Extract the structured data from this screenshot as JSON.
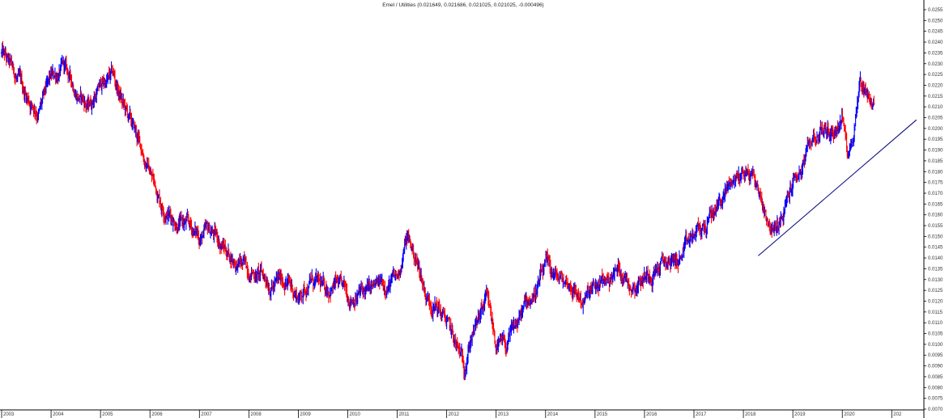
{
  "chart_data": {
    "type": "ohlc",
    "title": "Emel / Utilities (0.021649, 0.021686, 0.021025, 0.021025, -0.000496)",
    "x_tick_labels": [
      "2003",
      "2004",
      "2005",
      "2006",
      "2007",
      "2008",
      "2009",
      "2010",
      "2011",
      "2012",
      "2013",
      "2014",
      "2015",
      "2016",
      "2017",
      "2018",
      "2019",
      "2020",
      "202"
    ],
    "y_tick_labels": [
      "0.0255",
      "0.0250",
      "0.0245",
      "0.0240",
      "0.0235",
      "0.0230",
      "0.0225",
      "0.0220",
      "0.0215",
      "0.0210",
      "0.0205",
      "0.0200",
      "0.0195",
      "0.0190",
      "0.0185",
      "0.0180",
      "0.0175",
      "0.0170",
      "0.0165",
      "0.0160",
      "0.0155",
      "0.0150",
      "0.0145",
      "0.0140",
      "0.0135",
      "0.0130",
      "0.0125",
      "0.0120",
      "0.0115",
      "0.0110",
      "0.0105",
      "0.0100",
      "0.0095",
      "0.0090",
      "0.0085",
      "0.0080",
      "0.0075",
      "0.0070"
    ],
    "ylim": [
      0.007,
      0.0255
    ],
    "xlim": [
      2003.0,
      2021.65
    ],
    "up_color": "#0000ff",
    "down_color": "#ff0000",
    "trendline_color": "#000080",
    "series": {
      "x": [
        2003.0,
        2003.25,
        2003.5,
        2003.75,
        2004.0,
        2004.25,
        2004.5,
        2004.75,
        2005.0,
        2005.25,
        2005.5,
        2005.75,
        2006.0,
        2006.25,
        2006.5,
        2006.75,
        2007.0,
        2007.25,
        2007.5,
        2007.75,
        2008.0,
        2008.25,
        2008.5,
        2008.75,
        2009.0,
        2009.25,
        2009.5,
        2009.75,
        2010.0,
        2010.25,
        2010.5,
        2010.75,
        2011.0,
        2011.2,
        2011.4,
        2011.6,
        2011.8,
        2012.0,
        2012.2,
        2012.35,
        2012.5,
        2012.6,
        2012.8,
        2013.0,
        2013.2,
        2013.4,
        2013.6,
        2013.8,
        2014.0,
        2014.25,
        2014.5,
        2014.75,
        2015.0,
        2015.25,
        2015.5,
        2015.75,
        2016.0,
        2016.25,
        2016.5,
        2016.75,
        2017.0,
        2017.25,
        2017.5,
        2017.75,
        2018.0,
        2018.2,
        2018.4,
        2018.6,
        2018.8,
        2019.0,
        2019.2,
        2019.4,
        2019.6,
        2019.8,
        2020.0,
        2020.1,
        2020.2,
        2020.35,
        2020.5,
        2020.65
      ],
      "y": [
        0.0235,
        0.0225,
        0.0215,
        0.0208,
        0.0222,
        0.0228,
        0.0218,
        0.021,
        0.022,
        0.0224,
        0.0208,
        0.0195,
        0.018,
        0.0165,
        0.0158,
        0.0155,
        0.015,
        0.0152,
        0.0145,
        0.0138,
        0.0135,
        0.0132,
        0.0128,
        0.013,
        0.0122,
        0.013,
        0.0125,
        0.0128,
        0.0122,
        0.0124,
        0.0125,
        0.0128,
        0.013,
        0.015,
        0.0138,
        0.0122,
        0.0118,
        0.011,
        0.0098,
        0.009,
        0.0105,
        0.0108,
        0.012,
        0.01,
        0.0098,
        0.0108,
        0.0118,
        0.0125,
        0.0135,
        0.013,
        0.0128,
        0.012,
        0.0125,
        0.013,
        0.0135,
        0.0128,
        0.0132,
        0.0136,
        0.0138,
        0.014,
        0.015,
        0.0155,
        0.0165,
        0.0175,
        0.018,
        0.0178,
        0.0165,
        0.0152,
        0.0158,
        0.0175,
        0.0182,
        0.0195,
        0.02,
        0.0198,
        0.0205,
        0.019,
        0.0195,
        0.0222,
        0.0218,
        0.021
      ]
    },
    "trendline": {
      "x": [
        2018.3,
        2021.5
      ],
      "y": [
        0.0141,
        0.0204
      ]
    },
    "grid": false,
    "xlabel": "",
    "ylabel": ""
  }
}
